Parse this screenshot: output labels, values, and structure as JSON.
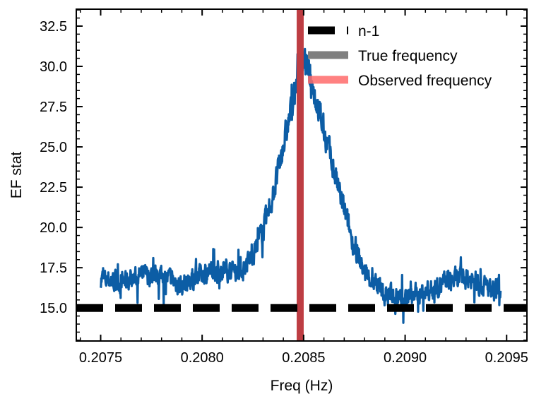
{
  "chart_data": {
    "type": "line",
    "xlabel": "Freq (Hz)",
    "ylabel": "EF stat",
    "xlim": [
      0.20738,
      0.2096
    ],
    "ylim": [
      12.95,
      33.55
    ],
    "x_ticks": [
      0.2075,
      0.208,
      0.2085,
      0.209,
      0.2095
    ],
    "x_tick_labels": [
      "0.2075",
      "0.2080",
      "0.2085",
      "0.2090",
      "0.2095"
    ],
    "y_ticks": [
      15.0,
      17.5,
      20.0,
      22.5,
      25.0,
      27.5,
      30.0,
      32.5
    ],
    "y_tick_labels": [
      "15.0",
      "17.5",
      "20.0",
      "22.5",
      "25.0",
      "27.5",
      "30.0",
      "32.5"
    ],
    "legend_position": "top-right",
    "colors": {
      "series": "#0c5da5",
      "threshold": "#000000",
      "true_frequency": "#7f7f7f",
      "observed_frequency": "#ff6b6b",
      "observed_line": "#c0393f"
    },
    "series": [
      {
        "name": "",
        "x": [
          0.2075,
          0.2076,
          0.2077,
          0.2078,
          0.2079,
          0.208,
          0.2081,
          0.2082,
          0.20825,
          0.2083,
          0.20835,
          0.2084,
          0.20845,
          0.20848,
          0.2085,
          0.20852,
          0.20855,
          0.2086,
          0.20865,
          0.2087,
          0.20875,
          0.2088,
          0.2089,
          0.209,
          0.2091,
          0.2092,
          0.2093,
          0.2094,
          0.20947
        ],
        "y": [
          16.8,
          16.6,
          17.0,
          17.1,
          16.4,
          17.2,
          17.4,
          17.4,
          18.3,
          19.8,
          22.0,
          25.0,
          28.0,
          30.1,
          30.3,
          29.8,
          28.5,
          26.0,
          23.5,
          21.0,
          18.8,
          17.2,
          15.9,
          15.6,
          16.0,
          16.6,
          16.9,
          16.3,
          16.1
        ]
      },
      {
        "name": "n-1",
        "x": [
          0.20738,
          0.2096
        ],
        "y": [
          15.0,
          15.0
        ]
      }
    ],
    "vlines": [
      {
        "name": "True frequency",
        "x": 0.208483
      },
      {
        "name": "Observed frequency",
        "x": 0.208483
      }
    ],
    "legend": [
      {
        "label": "n-1"
      },
      {
        "label": "True frequency"
      },
      {
        "label": "Observed frequency"
      }
    ]
  }
}
